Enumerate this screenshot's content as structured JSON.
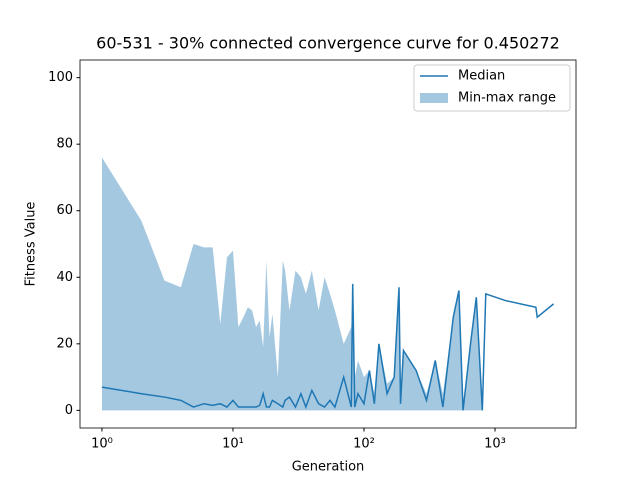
{
  "chart_data": {
    "type": "line",
    "title": "60-531 - 30% connected convergence curve for 0.450272",
    "x_label": "Generation",
    "y_label": "Fitness Value",
    "x_scale": "log",
    "x": [
      1,
      2,
      3,
      4,
      5,
      6,
      7,
      8,
      9,
      10,
      11,
      12,
      13,
      14,
      15,
      16,
      17,
      18,
      19,
      20,
      22,
      24,
      25,
      27,
      30,
      33,
      36,
      40,
      45,
      50,
      55,
      60,
      70,
      80,
      82,
      85,
      90,
      100,
      110,
      120,
      130,
      150,
      170,
      185,
      190,
      200,
      250,
      300,
      350,
      400,
      480,
      530,
      570,
      650,
      720,
      800,
      850,
      1200,
      2050,
      2100,
      2800
    ],
    "series": [
      {
        "name": "Median",
        "color": "#1f77b4",
        "values": [
          7,
          5,
          4,
          3,
          1,
          2,
          1.5,
          2,
          1,
          3,
          1,
          1,
          1,
          1,
          1,
          1.5,
          5,
          1,
          1,
          3,
          2,
          1,
          3,
          4,
          1,
          5,
          1,
          6,
          2,
          1,
          3,
          1,
          10,
          1,
          38,
          1,
          5,
          2,
          12,
          2,
          20,
          5,
          10,
          37,
          2,
          18,
          12,
          3,
          15,
          1,
          28,
          36,
          0,
          20,
          34,
          0,
          35,
          33,
          31,
          28,
          32
        ]
      },
      {
        "name": "Min-max range",
        "color": "#a5c8e1",
        "values": [
          76,
          57,
          39,
          37,
          50,
          49,
          49,
          26,
          46,
          48,
          25,
          28,
          31,
          30,
          25,
          27,
          19,
          45,
          22,
          29,
          10,
          45,
          42,
          30,
          42,
          40,
          35,
          42,
          30,
          40,
          35,
          30,
          20,
          25,
          38,
          10,
          15,
          10,
          12,
          5,
          20,
          8,
          10,
          37,
          5,
          18,
          12,
          5,
          15,
          5,
          28,
          36,
          0,
          20,
          34,
          0,
          35,
          33,
          31,
          28,
          32
        ],
        "lower": [
          0,
          0,
          0,
          0,
          0,
          0,
          0,
          0,
          0,
          0,
          0,
          0,
          0,
          0,
          0,
          0,
          0,
          0,
          0,
          0,
          0,
          0,
          0,
          0,
          0,
          0,
          0,
          0,
          0,
          0,
          0,
          0,
          0,
          0,
          0,
          0,
          0,
          0,
          0,
          0,
          0,
          0,
          0,
          0,
          0,
          0,
          0,
          0,
          0,
          0,
          0,
          0,
          0,
          0,
          0,
          0,
          35,
          33,
          31,
          28,
          32
        ]
      }
    ],
    "xlim": [
      0.68,
      4150
    ],
    "ylim": [
      -5.3,
      105.3
    ],
    "xticks": [
      {
        "value": 1,
        "label": "10⁰"
      },
      {
        "value": 10,
        "label": "10¹"
      },
      {
        "value": 100,
        "label": "10²"
      },
      {
        "value": 1000,
        "label": "10³"
      }
    ],
    "yticks": [
      0,
      20,
      40,
      60,
      80,
      100
    ],
    "legend": "upper right"
  }
}
